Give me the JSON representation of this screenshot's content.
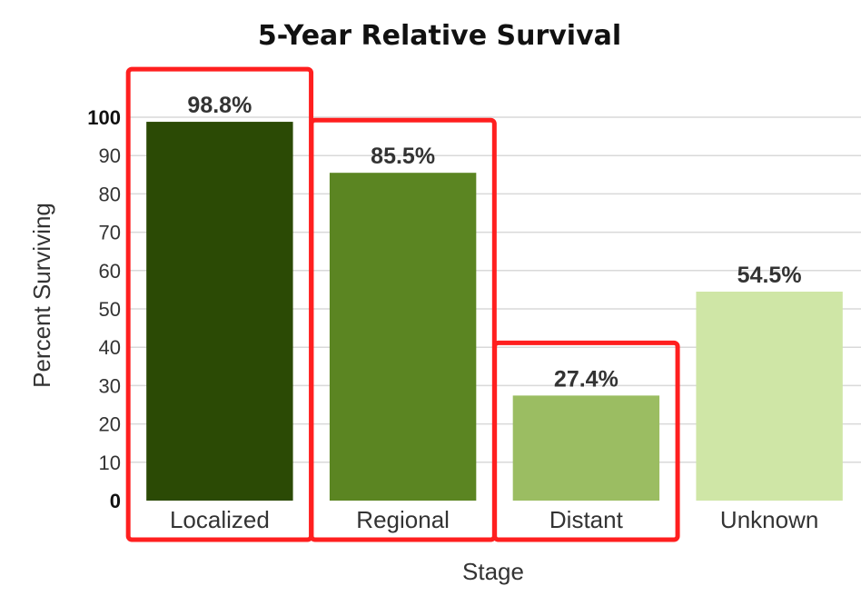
{
  "chart_data": {
    "type": "bar",
    "title": "5-Year Relative Survival",
    "xlabel": "Stage",
    "ylabel": "Percent Surviving",
    "ylim": [
      0,
      100
    ],
    "yticks": [
      0,
      10,
      20,
      30,
      40,
      50,
      60,
      70,
      80,
      90,
      100
    ],
    "grid": true,
    "categories": [
      "Localized",
      "Regional",
      "Distant",
      "Unknown"
    ],
    "values": [
      98.8,
      85.5,
      27.4,
      54.5
    ],
    "value_labels": [
      "98.8%",
      "85.5%",
      "27.4%",
      "54.5%"
    ],
    "colors": [
      "#2b4a05",
      "#5b8522",
      "#9bbd62",
      "#cfe6a6"
    ],
    "highlighted": [
      "Localized",
      "Regional",
      "Distant"
    ],
    "highlight_color": "#ff1f1f"
  }
}
